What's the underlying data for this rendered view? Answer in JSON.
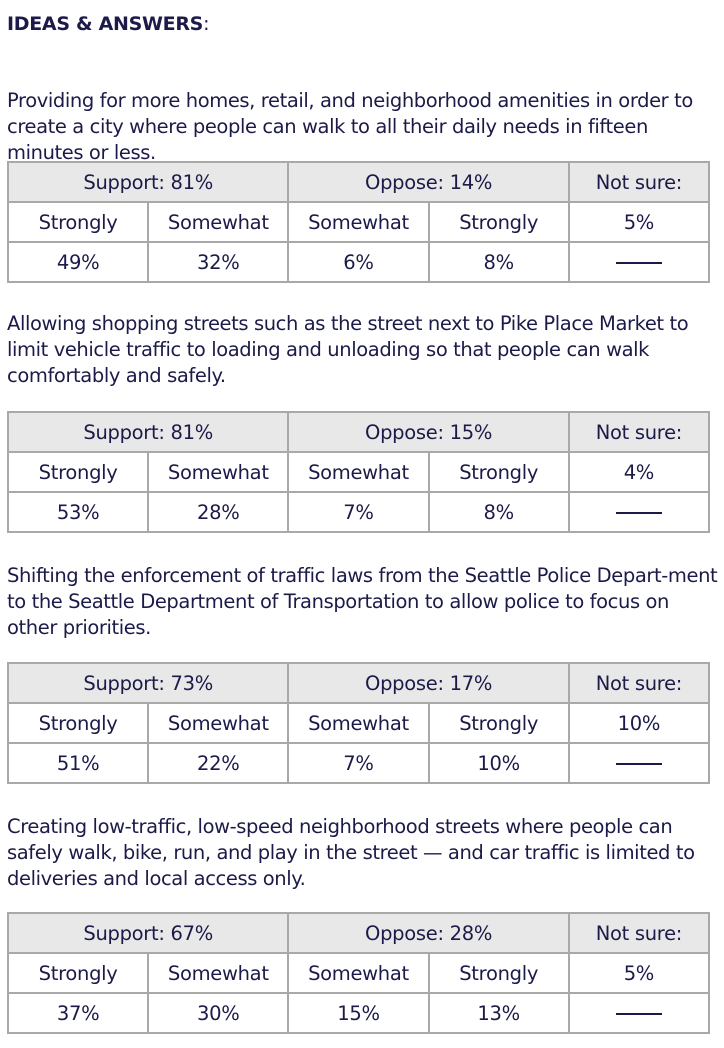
{
  "title": "IDEAS & ANSWERS",
  "title_colon": ":",
  "items": [
    {
      "text": "Providing for more homes, retail, and neighborhood amenities in order to create a city where people can walk to all their daily needs in fifteen minutes or less.",
      "support": "Support: 81%",
      "oppose": "Oppose: 14%",
      "not_sure": "Not sure:",
      "not_sure_value": "5%",
      "labels": [
        "Strongly",
        "Somewhat",
        "Somewhat",
        "Strongly"
      ],
      "values": [
        "49%",
        "32%",
        "6%",
        "8%"
      ]
    },
    {
      "text": "Allowing shopping streets such as the street next to Pike Place Market to limit vehicle traffic to loading and unloading so that people can walk comfortably and safely.",
      "support": "Support: 81%",
      "oppose": "Oppose: 15%",
      "not_sure": "Not sure:",
      "not_sure_value": "4%",
      "labels": [
        "Strongly",
        "Somewhat",
        "Somewhat",
        "Strongly"
      ],
      "values": [
        "53%",
        "28%",
        "7%",
        "8%"
      ]
    },
    {
      "text": "Shifting the enforcement of traffic laws from the Seattle Police Depart-ment to the Seattle Department of Transportation to allow police to focus on other priorities.",
      "support": "Support: 73%",
      "oppose": "Oppose: 17%",
      "not_sure": "Not sure:",
      "not_sure_value": "10%",
      "labels": [
        "Strongly",
        "Somewhat",
        "Somewhat",
        "Strongly"
      ],
      "values": [
        "51%",
        "22%",
        "7%",
        "10%"
      ]
    },
    {
      "text": "Creating low-traffic, low-speed neighborhood streets where people can safely walk, bike, run, and play in the street — and car traffic is limited to deliveries and local access only.",
      "support": "Support: 67%",
      "oppose": "Oppose: 28%",
      "not_sure": "Not sure:",
      "not_sure_value": "5%",
      "labels": [
        "Strongly",
        "Somewhat",
        "Somewhat",
        "Strongly"
      ],
      "values": [
        "37%",
        "30%",
        "15%",
        "13%"
      ]
    }
  ]
}
